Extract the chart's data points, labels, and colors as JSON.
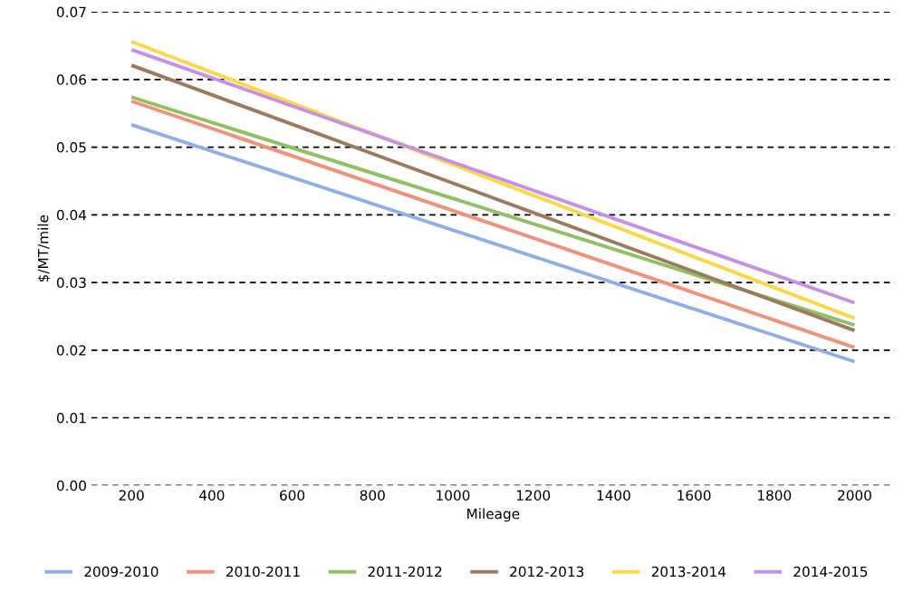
{
  "chart_data": {
    "type": "line",
    "xlabel": "Mileage",
    "ylabel": "$/MT/mile",
    "x": [
      200,
      2000
    ],
    "series": [
      {
        "name": "2009-2010",
        "color": "#8faee8",
        "values": [
          0.0533,
          0.0183
        ]
      },
      {
        "name": "2010-2011",
        "color": "#f2917a",
        "values": [
          0.0568,
          0.0204
        ]
      },
      {
        "name": "2011-2012",
        "color": "#8fc062",
        "values": [
          0.0574,
          0.0237
        ]
      },
      {
        "name": "2012-2013",
        "color": "#9c7a5e",
        "values": [
          0.0621,
          0.0229
        ]
      },
      {
        "name": "2013-2014",
        "color": "#fdd846",
        "values": [
          0.0656,
          0.0247
        ]
      },
      {
        "name": "2014-2015",
        "color": "#c690e6",
        "values": [
          0.0644,
          0.027
        ]
      }
    ],
    "xlim": [
      100,
      2100
    ],
    "xticks": [
      200,
      400,
      600,
      800,
      1000,
      1200,
      1400,
      1600,
      1800,
      2000
    ],
    "ylim": [
      0,
      0.07
    ],
    "yticks": [
      {
        "value": 0,
        "label": "0.00"
      },
      {
        "value": 0.01,
        "label": "0.01"
      },
      {
        "value": 0.02,
        "label": "0.02"
      },
      {
        "value": 0.03,
        "label": "0.03"
      },
      {
        "value": 0.04,
        "label": "0.04"
      },
      {
        "value": 0.05,
        "label": "0.05"
      },
      {
        "value": 0.06,
        "label": "0.06"
      },
      {
        "value": 0.07,
        "label": "0.07"
      }
    ],
    "grid": "y",
    "legend": "bottom",
    "marker": "none",
    "line_style": "solid"
  }
}
